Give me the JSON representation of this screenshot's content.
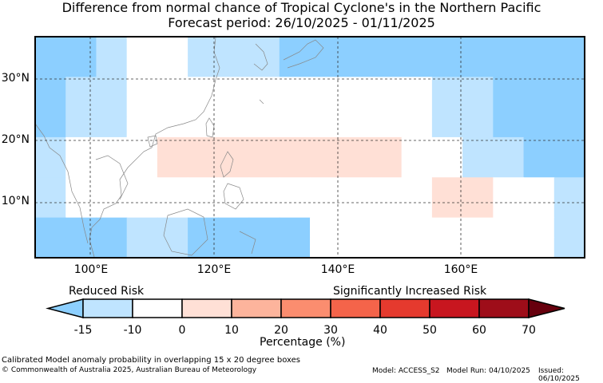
{
  "title": {
    "line1": "Difference from normal chance of Tropical Cyclone's in the Northern Pacific",
    "line2": "Forecast period: 26/10/2025 - 01/11/2025"
  },
  "axes": {
    "lat_labels": [
      "30°N",
      "20°N",
      "10°N"
    ],
    "lon_labels": [
      "100°E",
      "120°E",
      "140°E",
      "160°E"
    ]
  },
  "colorbar": {
    "left_label": "Reduced Risk",
    "right_label": "Significantly Increased Risk",
    "ticks": [
      "-15",
      "-10",
      "0",
      "10",
      "20",
      "30",
      "40",
      "50",
      "60",
      "70"
    ],
    "colors": [
      "#bfe4ff",
      "#ffffff",
      "#ffe0d6",
      "#fdb49c",
      "#fb8d6f",
      "#f4644a",
      "#e53a2e",
      "#c8161f",
      "#9e0d19"
    ],
    "under_color": "#8ccfff",
    "over_color": "#67000d",
    "xlabel": "Percentage (%)"
  },
  "palette": {
    "strong_reduced": "#8ccfff",
    "reduced": "#bfe4ff",
    "neutral": "#ffffff",
    "increased": "#ffe0d6"
  },
  "grid_cells": [
    [
      "S",
      "S",
      "L",
      "N",
      "N",
      "L",
      "L",
      "L",
      "S",
      "S",
      "S",
      "S",
      "S",
      "S",
      "S",
      "S",
      "S",
      "S"
    ],
    [
      "S",
      "S",
      "L",
      "N",
      "N",
      "L",
      "L",
      "L",
      "S",
      "S",
      "S",
      "S",
      "S",
      "S",
      "S",
      "S",
      "S",
      "S"
    ],
    [
      "S",
      "L",
      "L",
      "N",
      "N",
      "N",
      "N",
      "N",
      "N",
      "N",
      "N",
      "N",
      "N",
      "L",
      "L",
      "S",
      "S",
      "S"
    ],
    [
      "S",
      "L",
      "L",
      "N",
      "N",
      "N",
      "N",
      "N",
      "N",
      "N",
      "N",
      "N",
      "N",
      "L",
      "L",
      "S",
      "S",
      "S"
    ],
    [
      "S",
      "L",
      "L",
      "N",
      "N",
      "N",
      "N",
      "N",
      "N",
      "N",
      "N",
      "N",
      "N",
      "L",
      "L",
      "S",
      "S",
      "S"
    ],
    [
      "L",
      "N",
      "N",
      "N",
      "I",
      "I",
      "I",
      "I",
      "I",
      "I",
      "I",
      "I",
      "N",
      "N",
      "L",
      "L",
      "S",
      "S"
    ],
    [
      "L",
      "N",
      "N",
      "N",
      "I",
      "I",
      "I",
      "I",
      "I",
      "I",
      "I",
      "I",
      "N",
      "N",
      "L",
      "L",
      "S",
      "S"
    ],
    [
      "L",
      "N",
      "N",
      "N",
      "N",
      "N",
      "N",
      "N",
      "N",
      "N",
      "N",
      "N",
      "N",
      "I",
      "I",
      "N",
      "N",
      "L"
    ],
    [
      "L",
      "N",
      "N",
      "N",
      "N",
      "N",
      "N",
      "N",
      "N",
      "N",
      "N",
      "N",
      "N",
      "I",
      "I",
      "N",
      "N",
      "L"
    ],
    [
      "S",
      "S",
      "S",
      "L",
      "L",
      "S",
      "S",
      "S",
      "S",
      "N",
      "N",
      "N",
      "N",
      "N",
      "N",
      "N",
      "N",
      "L"
    ],
    [
      "S",
      "S",
      "S",
      "L",
      "L",
      "S",
      "S",
      "S",
      "S",
      "N",
      "N",
      "N",
      "N",
      "N",
      "N",
      "N",
      "N",
      "L"
    ]
  ],
  "footer": {
    "note": "Calibrated Model anomaly probability in overlapping 15 x 20 degree boxes",
    "copyright": "© Commonwealth of Australia 2025, Australian Bureau of Meteorology",
    "model": "Model: ACCESS_S2",
    "model_run": "Model Run: 04/10/2025",
    "issued": "Issued: 06/10/2025"
  }
}
